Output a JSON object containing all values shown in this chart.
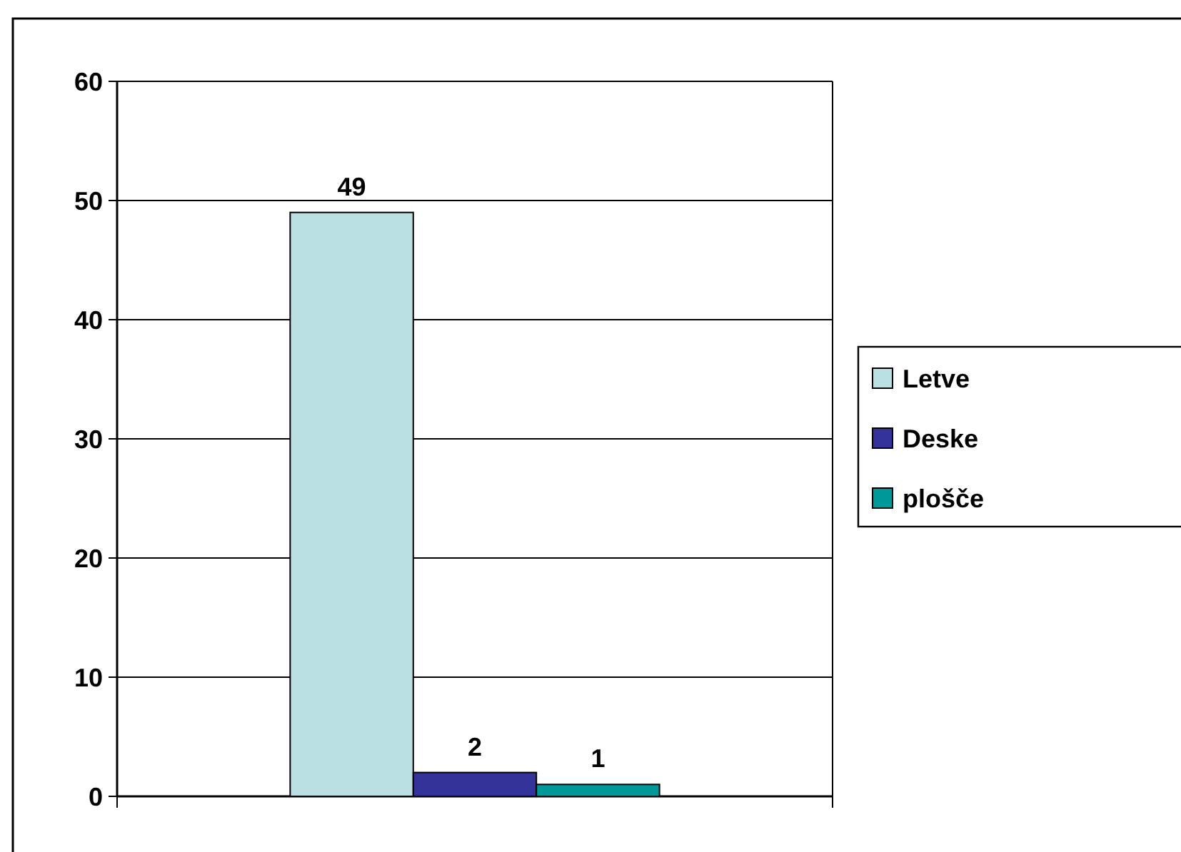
{
  "chart_data": {
    "type": "bar",
    "categories": [
      null
    ],
    "series": [
      {
        "name": "Letve",
        "color": "#bbe0e3",
        "values": [
          49
        ]
      },
      {
        "name": "Deske",
        "color": "#333399",
        "values": [
          2
        ]
      },
      {
        "name": "plošče",
        "color": "#009999",
        "values": [
          1
        ]
      }
    ],
    "ylim": [
      0,
      60
    ],
    "yticks": [
      0,
      10,
      20,
      30,
      40,
      50,
      60
    ],
    "grid": "y",
    "legend": "right",
    "data_labels": true
  }
}
